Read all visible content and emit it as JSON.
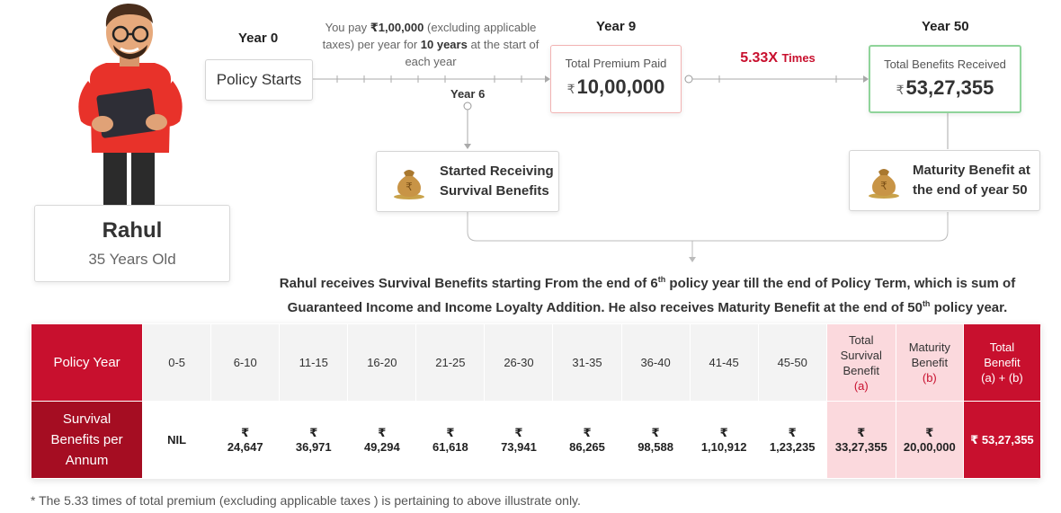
{
  "person": {
    "name": "Rahul",
    "age": "35 Years Old"
  },
  "timeline": {
    "year0": "Year 0",
    "year6": "Year 6",
    "year9": "Year 9",
    "year50": "Year 50",
    "policy_starts": "Policy Starts",
    "pay_pre": "You pay ",
    "pay_amount": "₹1,00,000",
    "pay_mid": " (excluding applicable taxes) per year for ",
    "pay_years": "10 years",
    "pay_post": " at the start of each year",
    "premium_title": "Total Premium Paid",
    "premium_amount": "10,00,000",
    "multiplier": "5.33X",
    "multiplier_suffix": "Times",
    "benefit_title": "Total Benefits Received",
    "benefit_amount": "53,27,355",
    "currency": "₹",
    "survival_line1": "Started Receiving",
    "survival_line2": "Survival Benefits",
    "maturity_line1": "Maturity Benefit at",
    "maturity_line2": "the end of year 50"
  },
  "description": {
    "p1": "Rahul receives Survival Benefits starting From the end of 6",
    "sup1": "th",
    "p2": " policy year till the end of Policy Term, which is sum of",
    "p3": "Guaranteed Income and Income Loyalty Addition. He also receives Maturity Benefit at the end of 50",
    "sup2": "th",
    "p4": " policy year."
  },
  "table": {
    "row1_head": "Policy Year",
    "years": [
      "0-5",
      "6-10",
      "11-15",
      "16-20",
      "21-25",
      "26-30",
      "31-35",
      "36-40",
      "41-45",
      "45-50"
    ],
    "tsb_l1": "Total",
    "tsb_l2": "Survival",
    "tsb_l3": "Benefit",
    "tsb_l4": "(a)",
    "mb_l1": "Maturity",
    "mb_l2": "Benefit",
    "mb_l3": "(b)",
    "tb_l1": "Total",
    "tb_l2": "Benefit",
    "tb_l3": "(a) + (b)",
    "row2_l1": "Survival",
    "row2_l2": "Benefits per",
    "row2_l3": "Annum",
    "nil": "NIL",
    "rs": "₹",
    "benefits": [
      "24,647",
      "36,971",
      "49,294",
      "61,618",
      "73,941",
      "86,265",
      "98,588",
      "1,10,912",
      "1,23,235"
    ],
    "total_survival": "33,27,355",
    "maturity": "20,00,000",
    "total": "₹ 53,27,355"
  },
  "footnote": "* The 5.33 times of total premium (excluding applicable taxes ) is pertaining to above illustrate only.",
  "colors": {
    "accent": "#c8102e",
    "dark_red": "#a50d22",
    "pink": "#fbd9dd",
    "green_border": "#8fd49a"
  }
}
